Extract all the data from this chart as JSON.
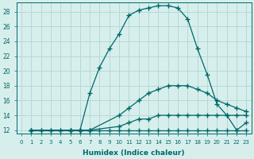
{
  "xlabel": "Humidex (Indice chaleur)",
  "bg_color": "#d6efed",
  "grid_color": "#b8d8d5",
  "line_color": "#006868",
  "xlim": [
    -0.5,
    23.5
  ],
  "ylim": [
    11.5,
    29.2
  ],
  "xticks": [
    0,
    1,
    2,
    3,
    4,
    5,
    6,
    7,
    8,
    9,
    10,
    11,
    12,
    13,
    14,
    15,
    16,
    17,
    18,
    19,
    20,
    21,
    22,
    23
  ],
  "yticks": [
    12,
    14,
    16,
    18,
    20,
    22,
    24,
    26,
    28
  ],
  "lines": [
    {
      "x": [
        1,
        2,
        3,
        4,
        5,
        6,
        7,
        8,
        9,
        10,
        11,
        12,
        13,
        14,
        15,
        16,
        17,
        18,
        19,
        20,
        21,
        22,
        23
      ],
      "y": [
        12,
        12,
        12,
        12,
        12,
        12,
        17,
        20.5,
        23,
        25,
        27.5,
        28.2,
        28.5,
        28.8,
        28.8,
        28.5,
        27,
        23,
        19.5,
        15.5,
        14,
        12,
        13
      ]
    },
    {
      "x": [
        1,
        5,
        6,
        7,
        10,
        11,
        12,
        13,
        14,
        15,
        16,
        17,
        18,
        19,
        20,
        21,
        22,
        23
      ],
      "y": [
        12,
        12,
        12,
        12,
        14,
        15,
        16,
        17,
        17.5,
        18,
        18,
        18,
        17.5,
        17,
        16,
        15.5,
        15,
        14.5
      ]
    },
    {
      "x": [
        1,
        5,
        6,
        7,
        10,
        11,
        12,
        13,
        14,
        15,
        16,
        17,
        18,
        19,
        20,
        21,
        22,
        23
      ],
      "y": [
        12,
        12,
        12,
        12,
        12.5,
        13,
        13.5,
        13.5,
        14,
        14,
        14,
        14,
        14,
        14,
        14,
        14,
        14,
        14
      ]
    },
    {
      "x": [
        1,
        2,
        3,
        4,
        5,
        6,
        7,
        8,
        9,
        10,
        11,
        12,
        13,
        14,
        15,
        16,
        17,
        18,
        19,
        20,
        21,
        22,
        23
      ],
      "y": [
        12,
        12,
        12,
        12,
        12,
        12,
        12,
        12,
        12,
        12,
        12,
        12,
        12,
        12,
        12,
        12,
        12,
        12,
        12,
        12,
        12,
        12,
        12
      ]
    }
  ]
}
